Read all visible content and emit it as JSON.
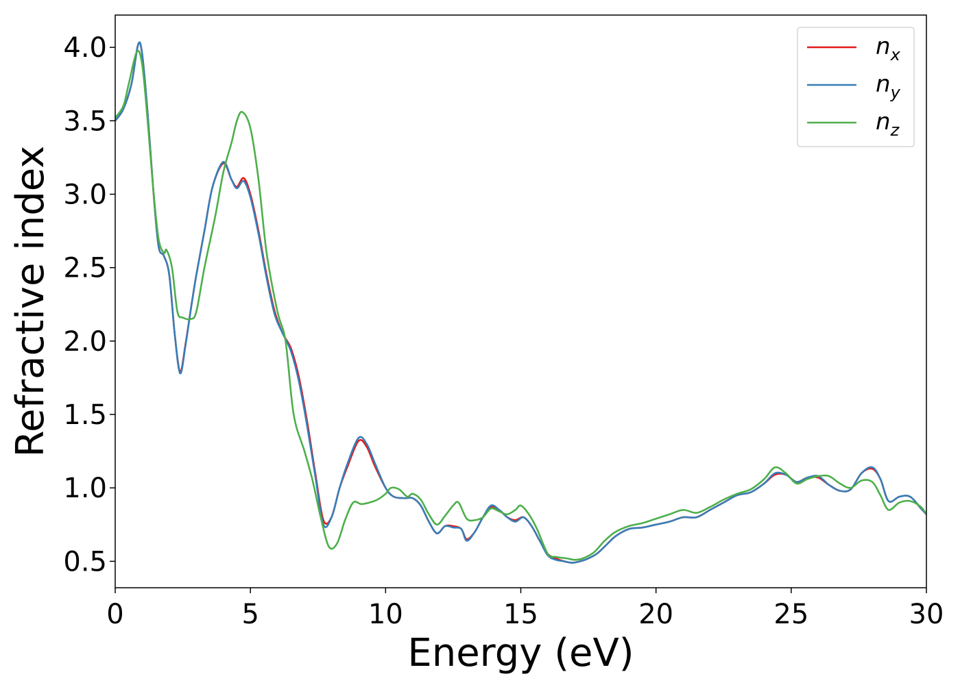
{
  "chart_data": {
    "type": "line",
    "title": "",
    "xlabel": "Energy (eV)",
    "ylabel": "Refractive index",
    "xlim": [
      0,
      30
    ],
    "ylim": [
      0.32,
      4.22
    ],
    "xticks": [
      0,
      5,
      10,
      15,
      20,
      25,
      30
    ],
    "xtick_labels": [
      "0",
      "5",
      "10",
      "15",
      "20",
      "25",
      "30"
    ],
    "yticks": [
      0.5,
      1.0,
      1.5,
      2.0,
      2.5,
      3.0,
      3.5,
      4.0
    ],
    "ytick_labels": [
      "0.5",
      "1.0",
      "1.5",
      "2.0",
      "2.5",
      "3.0",
      "3.5",
      "4.0"
    ],
    "grid": false,
    "legend_position": "top-right",
    "series": [
      {
        "name": "n",
        "subscript": "x",
        "color": "#e41a1c",
        "x": [
          0,
          0.3,
          0.6,
          0.85,
          1.0,
          1.2,
          1.4,
          1.6,
          1.8,
          2.0,
          2.2,
          2.4,
          2.6,
          2.8,
          3.0,
          3.3,
          3.6,
          4.0,
          4.3,
          4.5,
          4.75,
          5.0,
          5.3,
          5.6,
          5.9,
          6.2,
          6.5,
          6.8,
          7.1,
          7.4,
          7.7,
          8.0,
          8.3,
          8.6,
          9.0,
          9.3,
          9.6,
          10.0,
          10.3,
          10.7,
          11.0,
          11.3,
          11.6,
          11.9,
          12.2,
          12.5,
          12.8,
          13.0,
          13.3,
          13.6,
          13.9,
          14.2,
          14.5,
          14.8,
          15.1,
          15.4,
          15.7,
          16.0,
          16.3,
          16.6,
          16.9,
          17.2,
          17.5,
          17.8,
          18.1,
          18.5,
          19.0,
          19.5,
          20.0,
          20.5,
          21.0,
          21.5,
          22.0,
          22.5,
          23.0,
          23.5,
          24.0,
          24.4,
          24.8,
          25.2,
          25.6,
          26.0,
          26.4,
          26.8,
          27.2,
          27.6,
          28.0,
          28.3,
          28.6,
          29.0,
          29.4,
          29.8,
          30.0
        ],
        "y": [
          3.5,
          3.58,
          3.75,
          4.02,
          3.95,
          3.55,
          3.05,
          2.65,
          2.58,
          2.45,
          2.05,
          1.79,
          1.98,
          2.22,
          2.45,
          2.75,
          3.05,
          3.21,
          3.1,
          3.05,
          3.11,
          3.0,
          2.75,
          2.45,
          2.2,
          2.05,
          1.95,
          1.75,
          1.45,
          1.1,
          0.78,
          0.8,
          1.0,
          1.15,
          1.32,
          1.28,
          1.15,
          1.0,
          0.94,
          0.93,
          0.93,
          0.88,
          0.77,
          0.69,
          0.74,
          0.74,
          0.72,
          0.65,
          0.7,
          0.8,
          0.87,
          0.85,
          0.8,
          0.78,
          0.8,
          0.74,
          0.64,
          0.55,
          0.52,
          0.5,
          0.49,
          0.5,
          0.52,
          0.55,
          0.6,
          0.67,
          0.72,
          0.73,
          0.75,
          0.77,
          0.8,
          0.8,
          0.85,
          0.9,
          0.95,
          0.97,
          1.03,
          1.09,
          1.09,
          1.04,
          1.07,
          1.07,
          1.02,
          0.98,
          0.99,
          1.1,
          1.13,
          1.06,
          0.91,
          0.94,
          0.94,
          0.86,
          0.82
        ]
      },
      {
        "name": "n",
        "subscript": "y",
        "color": "#377eb8",
        "x": [
          0,
          0.3,
          0.6,
          0.85,
          1.0,
          1.2,
          1.4,
          1.6,
          1.8,
          2.0,
          2.2,
          2.4,
          2.6,
          2.8,
          3.0,
          3.3,
          3.6,
          4.0,
          4.3,
          4.5,
          4.75,
          5.0,
          5.3,
          5.6,
          5.9,
          6.2,
          6.5,
          6.8,
          7.1,
          7.4,
          7.7,
          8.0,
          8.3,
          8.6,
          9.0,
          9.3,
          9.6,
          10.0,
          10.3,
          10.7,
          11.0,
          11.3,
          11.6,
          11.9,
          12.2,
          12.5,
          12.8,
          13.0,
          13.3,
          13.6,
          13.9,
          14.2,
          14.5,
          14.8,
          15.1,
          15.4,
          15.7,
          16.0,
          16.3,
          16.6,
          16.9,
          17.2,
          17.5,
          17.8,
          18.1,
          18.5,
          19.0,
          19.5,
          20.0,
          20.5,
          21.0,
          21.5,
          22.0,
          22.5,
          23.0,
          23.5,
          24.0,
          24.4,
          24.8,
          25.2,
          25.6,
          26.0,
          26.4,
          26.8,
          27.2,
          27.6,
          28.0,
          28.3,
          28.6,
          29.0,
          29.4,
          29.8,
          30.0
        ],
        "y": [
          3.5,
          3.58,
          3.75,
          4.02,
          3.95,
          3.55,
          3.05,
          2.65,
          2.58,
          2.45,
          2.05,
          1.78,
          1.97,
          2.22,
          2.45,
          2.75,
          3.05,
          3.22,
          3.1,
          3.04,
          3.09,
          2.98,
          2.73,
          2.43,
          2.18,
          2.05,
          1.93,
          1.72,
          1.42,
          1.08,
          0.75,
          0.8,
          1.0,
          1.17,
          1.34,
          1.3,
          1.17,
          1.0,
          0.94,
          0.93,
          0.93,
          0.88,
          0.77,
          0.69,
          0.74,
          0.73,
          0.72,
          0.64,
          0.7,
          0.8,
          0.88,
          0.85,
          0.8,
          0.77,
          0.8,
          0.74,
          0.64,
          0.54,
          0.51,
          0.5,
          0.49,
          0.5,
          0.52,
          0.55,
          0.6,
          0.67,
          0.72,
          0.73,
          0.75,
          0.77,
          0.8,
          0.8,
          0.85,
          0.9,
          0.95,
          0.97,
          1.03,
          1.1,
          1.09,
          1.04,
          1.07,
          1.08,
          1.02,
          0.98,
          0.99,
          1.1,
          1.14,
          1.06,
          0.91,
          0.94,
          0.94,
          0.86,
          0.82
        ]
      },
      {
        "name": "n",
        "subscript": "z",
        "color": "#4daf4a",
        "x": [
          0,
          0.3,
          0.5,
          0.8,
          1.0,
          1.2,
          1.4,
          1.6,
          1.8,
          1.9,
          2.1,
          2.3,
          2.5,
          2.8,
          3.0,
          3.3,
          3.7,
          4.0,
          4.3,
          4.5,
          4.7,
          5.0,
          5.3,
          5.6,
          6.0,
          6.3,
          6.6,
          7.0,
          7.3,
          7.6,
          7.9,
          8.2,
          8.5,
          8.8,
          9.1,
          9.4,
          9.7,
          10.0,
          10.2,
          10.5,
          10.8,
          11.0,
          11.3,
          11.6,
          11.9,
          12.2,
          12.5,
          12.7,
          13.0,
          13.3,
          13.6,
          13.9,
          14.2,
          14.5,
          14.8,
          15.0,
          15.3,
          15.6,
          16.0,
          16.3,
          16.7,
          17.0,
          17.3,
          17.7,
          18.1,
          18.5,
          19.0,
          19.5,
          20.0,
          20.5,
          21.0,
          21.5,
          22.0,
          22.5,
          23.0,
          23.5,
          24.0,
          24.4,
          24.8,
          25.2,
          25.6,
          26.0,
          26.4,
          26.8,
          27.2,
          27.6,
          28.0,
          28.3,
          28.6,
          29.0,
          29.4,
          29.8,
          30.0
        ],
        "y": [
          3.52,
          3.6,
          3.75,
          3.97,
          3.88,
          3.5,
          3.05,
          2.7,
          2.6,
          2.62,
          2.5,
          2.2,
          2.16,
          2.15,
          2.2,
          2.5,
          2.85,
          3.15,
          3.35,
          3.5,
          3.56,
          3.45,
          3.1,
          2.6,
          2.2,
          2.0,
          1.5,
          1.25,
          1.05,
          0.8,
          0.6,
          0.62,
          0.78,
          0.9,
          0.89,
          0.9,
          0.92,
          0.96,
          1.0,
          0.99,
          0.94,
          0.96,
          0.92,
          0.82,
          0.75,
          0.81,
          0.88,
          0.9,
          0.79,
          0.78,
          0.8,
          0.86,
          0.84,
          0.82,
          0.85,
          0.88,
          0.82,
          0.72,
          0.55,
          0.53,
          0.52,
          0.51,
          0.52,
          0.56,
          0.64,
          0.7,
          0.74,
          0.76,
          0.79,
          0.82,
          0.85,
          0.83,
          0.87,
          0.92,
          0.96,
          0.99,
          1.06,
          1.14,
          1.1,
          1.03,
          1.06,
          1.08,
          1.08,
          1.03,
          1.0,
          1.05,
          1.04,
          0.95,
          0.85,
          0.9,
          0.91,
          0.87,
          0.82
        ]
      }
    ]
  }
}
